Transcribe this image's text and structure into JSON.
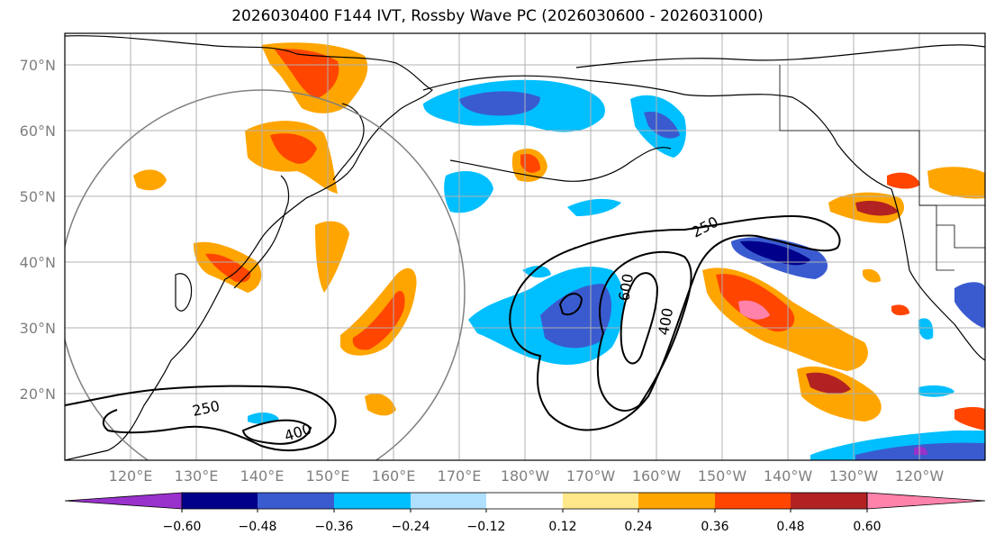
{
  "title": "2026030400 F144 IVT, Rossby Wave PC (2026030600 - 2026031000)",
  "lat_labels": [
    "70°N",
    "60°N",
    "50°N",
    "40°N",
    "30°N",
    "20°N"
  ],
  "lon_labels": [
    "120°E",
    "130°E",
    "140°E",
    "150°E",
    "160°E",
    "170°E",
    "180°W",
    "170°W",
    "160°W",
    "150°W",
    "140°W",
    "130°W",
    "120°W"
  ],
  "contour_labels": [
    "250",
    "600",
    "400",
    "250",
    "400"
  ],
  "colorbar": {
    "colors": [
      "#9932cc",
      "#00008b",
      "#3a5bd0",
      "#00bfff",
      "#b0e0ff",
      "#ffffff",
      "#ffe88a",
      "#ffa500",
      "#ff4500",
      "#b22222",
      "#ff82ab"
    ],
    "tick_labels": [
      "−0.60",
      "−0.48",
      "−0.36",
      "−0.24",
      "−0.12",
      "0.12",
      "0.24",
      "0.36",
      "0.48",
      "0.60"
    ]
  },
  "colors": {
    "grid": "#b0b0b0",
    "coast": "#000000",
    "circle": "#808080"
  }
}
